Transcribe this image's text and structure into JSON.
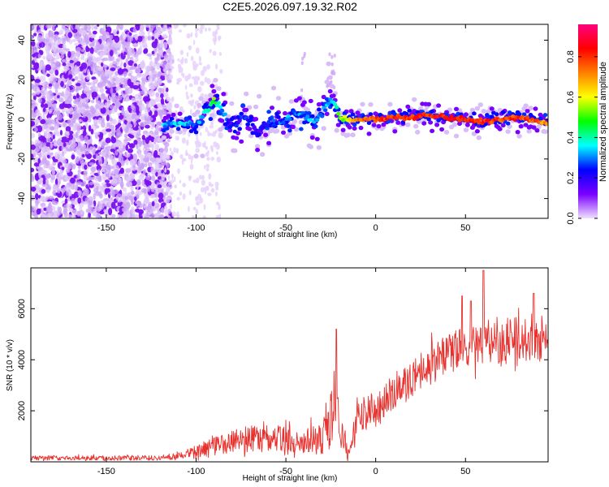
{
  "chart_data": [
    {
      "type": "heatmap",
      "title": "C2E5.2026.097.19.32.R02",
      "xlabel": "Height of straight line (km)",
      "ylabel": "Frequency (Hz)",
      "xlim": [
        -192,
        96
      ],
      "ylim": [
        -50,
        48
      ],
      "xticks": [
        -150,
        -100,
        -50,
        0,
        50
      ],
      "yticks": [
        -40,
        -20,
        0,
        20,
        40
      ],
      "colorbar": {
        "label": "Normalized spectral amplitude",
        "range": [
          0,
          0.96
        ],
        "ticks": [
          "0.0",
          "0.2",
          "0.4",
          "0.6",
          "0.8"
        ],
        "colormap": [
          "#f0e0ff",
          "#7a00ff",
          "#0000ff",
          "#00ffff",
          "#00ff00",
          "#ffff00",
          "#ff8000",
          "#ff0000",
          "#ff0080"
        ]
      },
      "noise_region_km": [
        -192,
        -118
      ],
      "ridge": {
        "x_km": [
          -118,
          -112,
          -106,
          -100,
          -95,
          -90,
          -86,
          -82,
          -78,
          -74,
          -70,
          -66,
          -62,
          -58,
          -54,
          -50,
          -46,
          -42,
          -38,
          -34,
          -30,
          -26,
          -23,
          -20,
          -15,
          -10,
          -5,
          0,
          10,
          20,
          30,
          40,
          50,
          60,
          70,
          80,
          90,
          96
        ],
        "freq_hz": [
          -3,
          -2,
          -2,
          -3,
          3,
          10,
          6,
          -2,
          -4,
          3,
          -1,
          -6,
          -4,
          1,
          -3,
          -1,
          4,
          2,
          1,
          -2,
          3,
          9,
          8,
          1,
          0,
          0,
          0,
          0,
          1,
          1,
          2,
          1,
          0,
          -1,
          0,
          1,
          -1,
          -2
        ],
        "amplitude": [
          0.3,
          0.35,
          0.35,
          0.3,
          0.35,
          0.5,
          0.35,
          0.2,
          0.2,
          0.25,
          0.2,
          0.2,
          0.22,
          0.25,
          0.25,
          0.3,
          0.28,
          0.3,
          0.3,
          0.3,
          0.3,
          0.32,
          0.35,
          0.5,
          0.6,
          0.7,
          0.75,
          0.8,
          0.8,
          0.82,
          0.8,
          0.85,
          0.8,
          0.82,
          0.78,
          0.8,
          0.75,
          0.7
        ]
      },
      "spurious_streaks_km": [
        -40,
        -25,
        -24
      ]
    },
    {
      "type": "line",
      "title": "",
      "xlabel": "Height of straight line (km)",
      "ylabel": "SNR (10 * v/v)",
      "xlim": [
        -192,
        96
      ],
      "ylim": [
        0,
        7600
      ],
      "xticks": [
        -150,
        -100,
        -50,
        0,
        50
      ],
      "yticks": [
        2000,
        4000,
        6000
      ],
      "color": "#e8302c",
      "series": [
        {
          "name": "SNR",
          "x": [
            -192,
            -180,
            -160,
            -140,
            -120,
            -110,
            -100,
            -95,
            -90,
            -85,
            -80,
            -75,
            -70,
            -65,
            -60,
            -55,
            -50,
            -45,
            -40,
            -35,
            -30,
            -26,
            -24,
            -22,
            -20,
            -18,
            -16,
            -14,
            -12,
            -10,
            -5,
            0,
            5,
            10,
            15,
            20,
            25,
            30,
            35,
            40,
            45,
            50,
            55,
            60,
            65,
            70,
            75,
            80,
            85,
            90,
            96
          ],
          "y": [
            150,
            150,
            150,
            140,
            160,
            250,
            350,
            500,
            600,
            700,
            800,
            850,
            900,
            850,
            800,
            850,
            900,
            850,
            900,
            950,
            1000,
            1200,
            2000,
            2600,
            1500,
            800,
            500,
            400,
            1300,
            1700,
            1900,
            2100,
            2400,
            2600,
            2900,
            3200,
            3500,
            3800,
            4000,
            4200,
            4400,
            4500,
            4600,
            4700,
            4800,
            4800,
            4800,
            4800,
            4750,
            4700,
            4700
          ],
          "noise_amp": [
            90,
            90,
            90,
            90,
            100,
            150,
            250,
            300,
            350,
            400,
            450,
            500,
            550,
            500,
            500,
            500,
            550,
            500,
            550,
            600,
            700,
            900,
            1500,
            1700,
            900,
            500,
            350,
            250,
            500,
            600,
            700,
            700,
            700,
            700,
            700,
            700,
            750,
            800,
            800,
            800,
            800,
            800,
            850,
            900,
            900,
            900,
            900,
            850,
            800,
            800,
            800
          ],
          "peaks": [
            [
              -22,
              5200
            ],
            [
              60,
              7500
            ],
            [
              88,
              6600
            ],
            [
              48,
              6500
            ],
            [
              53,
              6300
            ]
          ]
        }
      ]
    }
  ]
}
